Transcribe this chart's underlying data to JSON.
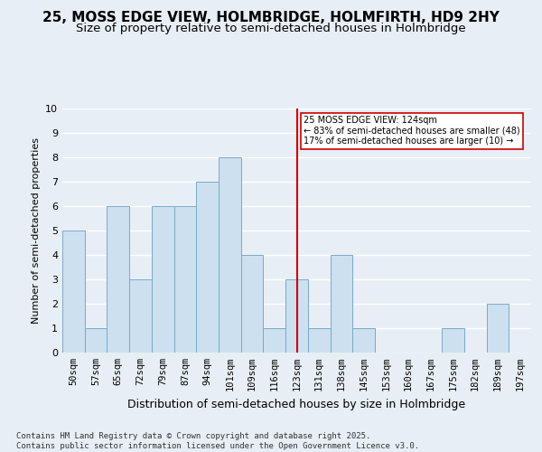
{
  "title1": "25, MOSS EDGE VIEW, HOLMBRIDGE, HOLMFIRTH, HD9 2HY",
  "title2": "Size of property relative to semi-detached houses in Holmbridge",
  "xlabel": "Distribution of semi-detached houses by size in Holmbridge",
  "ylabel": "Number of semi-detached properties",
  "categories": [
    "50sqm",
    "57sqm",
    "65sqm",
    "72sqm",
    "79sqm",
    "87sqm",
    "94sqm",
    "101sqm",
    "109sqm",
    "116sqm",
    "123sqm",
    "131sqm",
    "138sqm",
    "145sqm",
    "153sqm",
    "160sqm",
    "167sqm",
    "175sqm",
    "182sqm",
    "189sqm",
    "197sqm"
  ],
  "values": [
    5,
    1,
    6,
    3,
    6,
    6,
    7,
    8,
    4,
    1,
    3,
    1,
    4,
    1,
    0,
    0,
    0,
    1,
    0,
    2,
    0
  ],
  "bar_color": "#cce0f0",
  "bar_edge_color": "#7aaac8",
  "highlight_index": 10,
  "highlight_line_color": "#cc0000",
  "annotation_text": "25 MOSS EDGE VIEW: 124sqm\n← 83% of semi-detached houses are smaller (48)\n17% of semi-detached houses are larger (10) →",
  "annotation_box_color": "#ffffff",
  "annotation_box_edge": "#cc0000",
  "ylim": [
    0,
    10
  ],
  "yticks": [
    0,
    1,
    2,
    3,
    4,
    5,
    6,
    7,
    8,
    9,
    10
  ],
  "footer": "Contains HM Land Registry data © Crown copyright and database right 2025.\nContains public sector information licensed under the Open Government Licence v3.0.",
  "bg_color": "#e8eef5",
  "plot_bg_color": "#e8eef5",
  "grid_color": "#ffffff",
  "title1_fontsize": 11,
  "title2_fontsize": 9.5,
  "xlabel_fontsize": 9,
  "ylabel_fontsize": 8,
  "tick_fontsize": 7.5,
  "footer_fontsize": 6.5
}
